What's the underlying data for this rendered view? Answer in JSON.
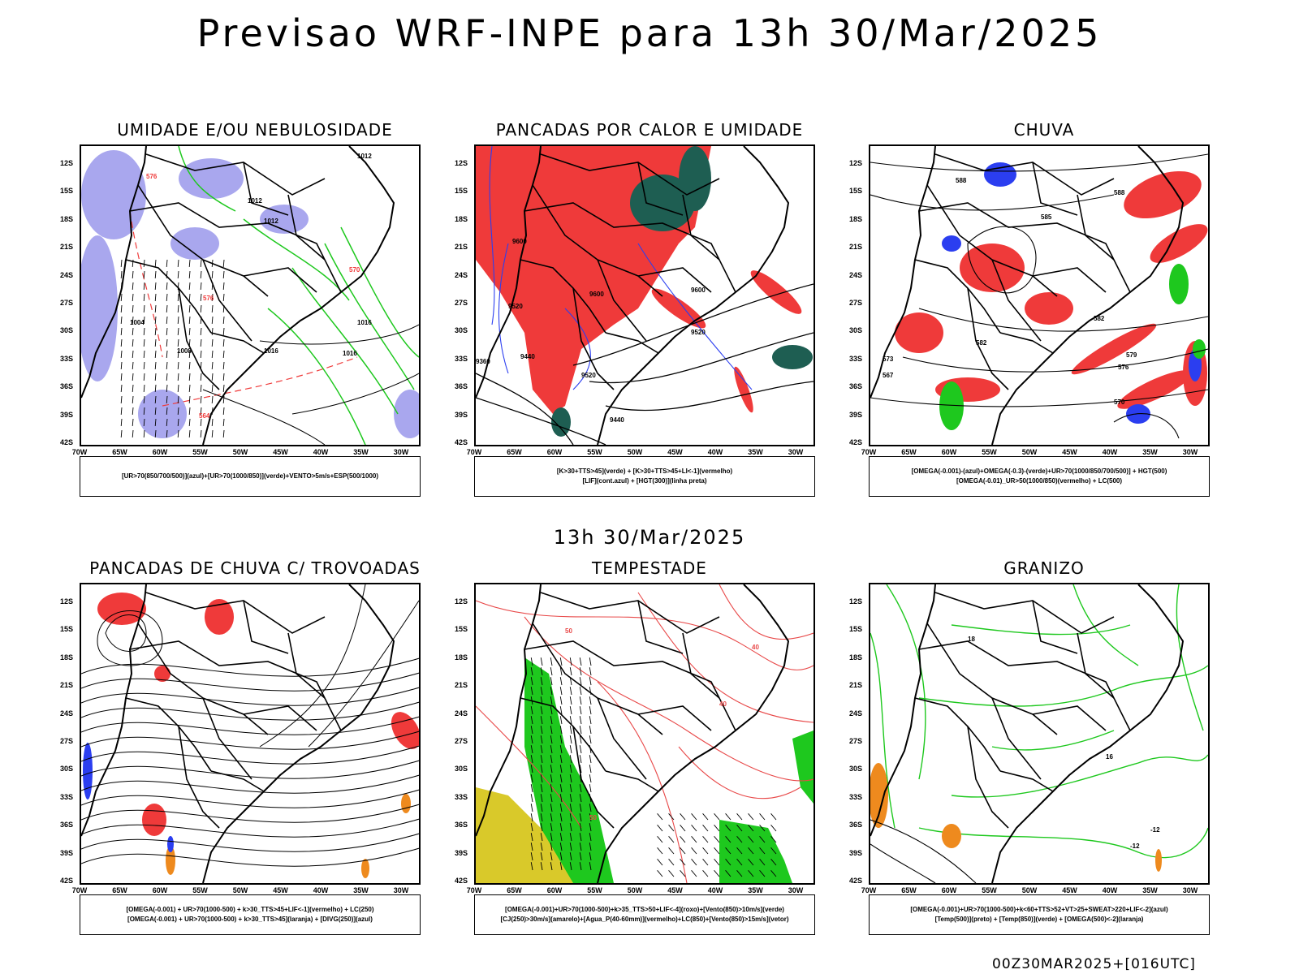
{
  "header": {
    "title": "Previsao WRF-INPE  para 13h 30/Mar/2025",
    "mid_title": "13h 30/Mar/2025",
    "footer": "00Z30MAR2025+[016UTC]"
  },
  "axes": {
    "lat_labels": [
      "12S",
      "15S",
      "18S",
      "21S",
      "24S",
      "27S",
      "30S",
      "33S",
      "36S",
      "39S",
      "42S"
    ],
    "lon_labels": [
      "70W",
      "65W",
      "60W",
      "55W",
      "50W",
      "45W",
      "40W",
      "35W",
      "30W"
    ]
  },
  "colors": {
    "umidade_azul": "#a9a7ee",
    "umidade_verde": "#1ec81e",
    "instabilidade_vermelho": "#ef3a3a",
    "instabilidade_verde_escuro": "#1e5e52",
    "lif_azul": "#2b3ef0",
    "laranja": "#ee8a1e",
    "amarelo": "#d9c92a"
  },
  "panels": [
    {
      "title": "UMIDADE E/OU NEBULOSIDADE",
      "legend": [
        "[UR>70(850/700/500)](azul)+[UR>70(1000/850)](verde)+VENTO>5m/s+ESP(500/1000)"
      ],
      "contour_labels": [
        "1012",
        "1012",
        "1012",
        "1016",
        "1016",
        "1016",
        "1008",
        "1004",
        "576",
        "570",
        "576",
        "564"
      ]
    },
    {
      "title": "PANCADAS POR CALOR E UMIDADE",
      "legend": [
        "[K>30+TTS>45](verde) + [K>30+TTS>45+LI<-1](vermelho)",
        "[LIF](cont.azul) + [HGT(300)](linha preta)"
      ],
      "contour_labels": [
        "9600",
        "9600",
        "9520",
        "9440",
        "9440",
        "9360",
        "9520",
        "9520",
        "9600"
      ]
    },
    {
      "title": "CHUVA",
      "legend": [
        "[OMEGA(-0.001)-(azul)+OMEGA(-0.3)-(verde)+UR>70(1000/850/700/500)] + HGT(500)",
        "[OMEGA(-0.01)_UR>50(1000/850)(vermelho) + LC(500)"
      ],
      "contour_labels": [
        "588",
        "588",
        "585",
        "582",
        "582",
        "579",
        "576",
        "573",
        "570",
        "567"
      ]
    },
    {
      "title": "PANCADAS DE CHUVA C/ TROVOADAS",
      "legend": [
        "[OMEGA(-0.001) + UR>70(1000-500) + k>30_TTS>45+LIF<-1](vermelho) + LC(250)",
        "[OMEGA(-0.001) + UR>70(1000-500) + k>30_TTS>45](laranja) + [DIVG(250)](azul)"
      ],
      "contour_labels": []
    },
    {
      "title": "TEMPESTADE",
      "legend": [
        "[OMEGA(-0.001)+UR>70(1000-500)+k>35_TTS>50+LIF<-4](roxo)+[Vento(850)>10m/s](verde)",
        "[CJ(250)>30m/s](amarelo)+[Agua_P(40-60mm)](vermelho)+LC(850)+[Vento(850)>15m/s](vetor)"
      ],
      "contour_labels": [
        "50",
        "40",
        "40",
        "50"
      ]
    },
    {
      "title": "GRANIZO",
      "legend": [
        "[OMEGA(-0.001)+UR>70(1000-500)+k<60+TTS>52+VT>25+SWEAT>220+LIF<-2](azul)",
        "[Temp(500)](preto) + [Temp(850)](verde) + [OMEGA(500)<-2](laranja)"
      ],
      "contour_labels": [
        "-12",
        "-12",
        "16",
        "18"
      ]
    }
  ]
}
